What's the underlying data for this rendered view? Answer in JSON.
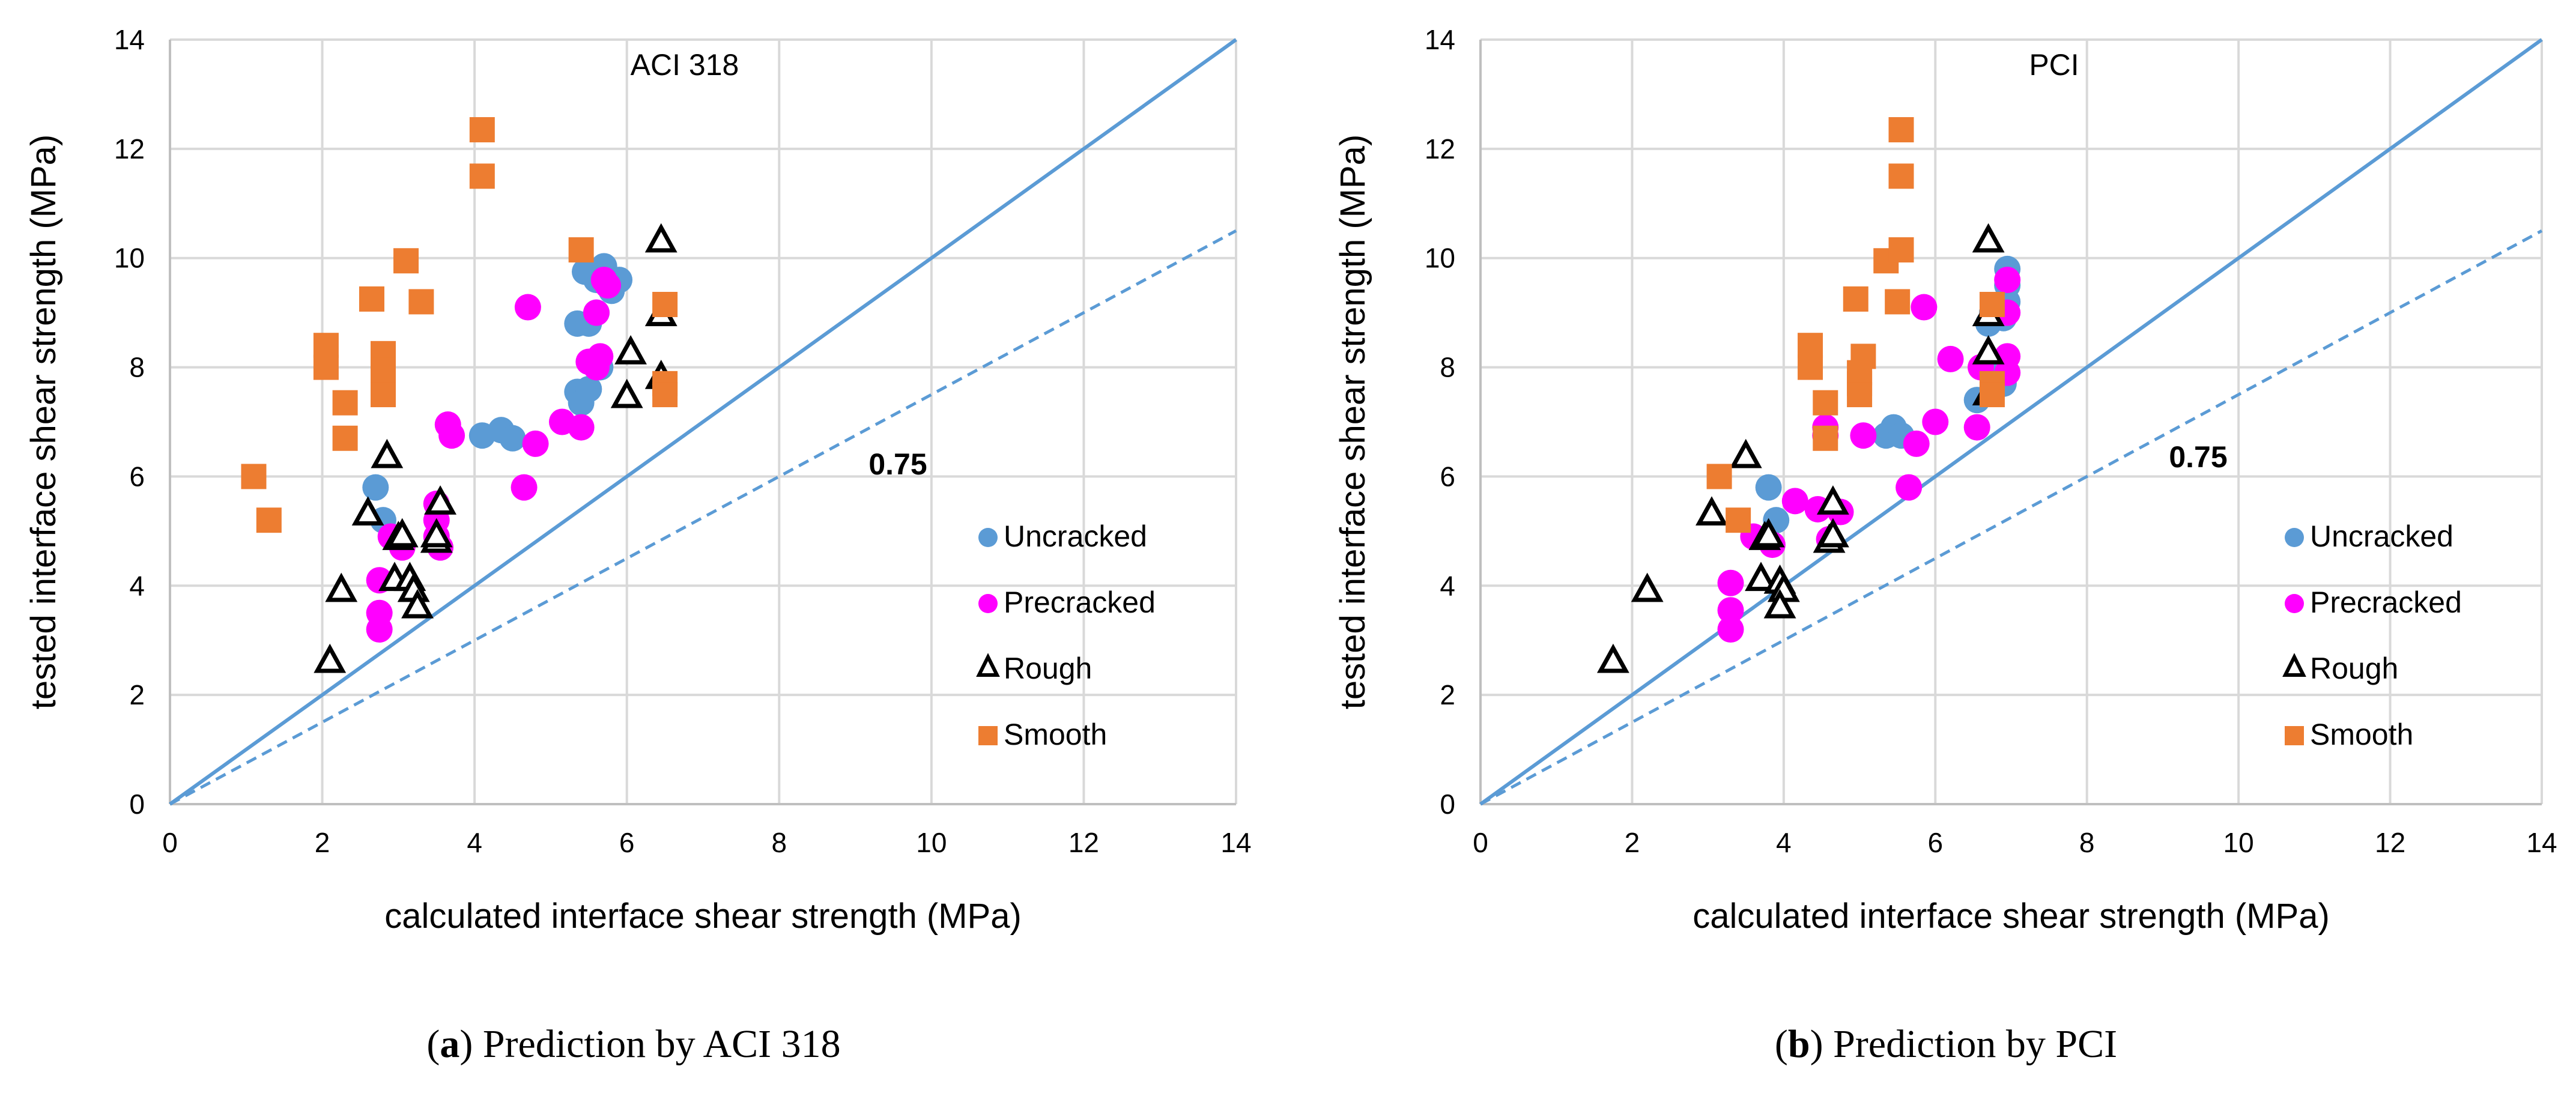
{
  "colors": {
    "uncracked": "#5B9BD5",
    "precracked": "#FF00FF",
    "rough": "#000000",
    "smooth": "#ED7D31",
    "grid": "#D9D9D9",
    "line": "#5B9BD5"
  },
  "captions": [
    {
      "letter": "a",
      "rest": ") Prediction by ACI 318",
      "open": "("
    },
    {
      "letter": "b",
      "rest": ") Prediction by PCI",
      "open": "("
    }
  ],
  "chart_data": [
    {
      "type": "scatter",
      "annotation": "ACI 318",
      "ratio_label": "0.75",
      "xlabel": "calculated interface shear strength (MPa)",
      "ylabel": "tested interface shear strength (MPa)",
      "xlim": [
        0,
        14
      ],
      "ylim": [
        0,
        14
      ],
      "xticks": [
        "0",
        "2",
        "4",
        "6",
        "8",
        "10",
        "12",
        "14"
      ],
      "yticks": [
        "0",
        "2",
        "4",
        "6",
        "8",
        "10",
        "12",
        "14"
      ],
      "grid": true,
      "legend": "right",
      "lines": [
        {
          "name": "1:1",
          "slope": 1,
          "style": "solid"
        },
        {
          "name": "0.75",
          "slope": 0.75,
          "style": "dashed"
        }
      ],
      "series": [
        {
          "name": "Uncracked",
          "marker": "circle",
          "points": [
            [
              2.7,
              5.8
            ],
            [
              2.8,
              5.2
            ],
            [
              4.1,
              6.75
            ],
            [
              4.35,
              6.85
            ],
            [
              4.5,
              6.7
            ],
            [
              5.35,
              7.55
            ],
            [
              5.4,
              7.35
            ],
            [
              5.5,
              7.6
            ],
            [
              5.35,
              8.8
            ],
            [
              5.5,
              8.8
            ],
            [
              5.6,
              9.0
            ],
            [
              5.6,
              9.6
            ],
            [
              5.7,
              9.85
            ],
            [
              5.8,
              9.4
            ],
            [
              5.9,
              9.6
            ],
            [
              5.45,
              9.75
            ],
            [
              5.65,
              8.0
            ]
          ]
        },
        {
          "name": "Precracked",
          "marker": "circle",
          "points": [
            [
              2.75,
              4.1
            ],
            [
              2.75,
              3.5
            ],
            [
              2.75,
              3.2
            ],
            [
              2.9,
              4.9
            ],
            [
              3.05,
              4.7
            ],
            [
              3.5,
              5.5
            ],
            [
              3.5,
              5.2
            ],
            [
              3.5,
              4.9
            ],
            [
              3.55,
              4.7
            ],
            [
              3.65,
              6.95
            ],
            [
              3.7,
              6.75
            ],
            [
              4.65,
              5.8
            ],
            [
              4.7,
              9.1
            ],
            [
              4.8,
              6.6
            ],
            [
              5.15,
              7.0
            ],
            [
              5.4,
              6.9
            ],
            [
              5.5,
              8.1
            ],
            [
              5.6,
              8.0
            ],
            [
              5.65,
              8.2
            ],
            [
              5.6,
              9.0
            ],
            [
              5.7,
              9.6
            ],
            [
              5.75,
              9.5
            ]
          ]
        },
        {
          "name": "Rough",
          "marker": "triangle",
          "points": [
            [
              2.1,
              2.6
            ],
            [
              2.25,
              3.9
            ],
            [
              2.6,
              5.3
            ],
            [
              2.85,
              6.35
            ],
            [
              2.95,
              4.1
            ],
            [
              3.0,
              4.85
            ],
            [
              3.05,
              4.9
            ],
            [
              3.15,
              4.1
            ],
            [
              3.2,
              3.9
            ],
            [
              3.25,
              3.6
            ],
            [
              3.5,
              4.8
            ],
            [
              3.5,
              4.9
            ],
            [
              3.55,
              5.5
            ],
            [
              6.0,
              7.45
            ],
            [
              6.05,
              8.25
            ],
            [
              6.45,
              10.3
            ],
            [
              6.45,
              8.95
            ],
            [
              6.45,
              7.8
            ]
          ]
        },
        {
          "name": "Smooth",
          "marker": "square",
          "points": [
            [
              1.1,
              6.0
            ],
            [
              1.3,
              5.2
            ],
            [
              2.05,
              8.4
            ],
            [
              2.05,
              8.0
            ],
            [
              2.3,
              7.35
            ],
            [
              2.3,
              6.7
            ],
            [
              2.65,
              9.25
            ],
            [
              2.8,
              8.25
            ],
            [
              2.8,
              7.95
            ],
            [
              2.8,
              7.7
            ],
            [
              2.8,
              7.5
            ],
            [
              3.1,
              9.95
            ],
            [
              3.3,
              9.2
            ],
            [
              4.1,
              12.35
            ],
            [
              4.1,
              11.5
            ],
            [
              5.4,
              10.15
            ],
            [
              6.5,
              9.15
            ],
            [
              6.5,
              7.7
            ],
            [
              6.5,
              7.5
            ]
          ]
        }
      ]
    },
    {
      "type": "scatter",
      "annotation": "PCI",
      "ratio_label": "0.75",
      "xlabel": "calculated interface shear strength (MPa)",
      "ylabel": "tested interface shear strength (MPa)",
      "xlim": [
        0,
        14
      ],
      "ylim": [
        0,
        14
      ],
      "xticks": [
        "0",
        "2",
        "4",
        "6",
        "8",
        "10",
        "12",
        "14"
      ],
      "yticks": [
        "0",
        "2",
        "4",
        "6",
        "8",
        "10",
        "12",
        "14"
      ],
      "grid": true,
      "legend": "right",
      "lines": [
        {
          "name": "1:1",
          "slope": 1,
          "style": "solid"
        },
        {
          "name": "0.75",
          "slope": 0.75,
          "style": "dashed"
        }
      ],
      "series": [
        {
          "name": "Uncracked",
          "marker": "circle",
          "points": [
            [
              3.8,
              5.8
            ],
            [
              3.9,
              5.2
            ],
            [
              5.35,
              6.75
            ],
            [
              5.45,
              6.9
            ],
            [
              5.55,
              6.75
            ],
            [
              6.55,
              7.4
            ],
            [
              6.7,
              8.8
            ],
            [
              6.75,
              8.9
            ],
            [
              6.8,
              8.0
            ],
            [
              6.9,
              7.7
            ],
            [
              6.95,
              9.8
            ],
            [
              6.95,
              9.5
            ],
            [
              6.95,
              9.2
            ],
            [
              6.9,
              8.9
            ],
            [
              6.75,
              9.0
            ]
          ]
        },
        {
          "name": "Precracked",
          "marker": "circle",
          "points": [
            [
              3.3,
              4.05
            ],
            [
              3.3,
              3.55
            ],
            [
              3.3,
              3.2
            ],
            [
              3.6,
              4.9
            ],
            [
              3.85,
              4.75
            ],
            [
              4.15,
              5.55
            ],
            [
              4.45,
              5.4
            ],
            [
              4.6,
              4.85
            ],
            [
              4.55,
              6.9
            ],
            [
              4.55,
              6.75
            ],
            [
              4.75,
              5.35
            ],
            [
              5.05,
              6.75
            ],
            [
              5.65,
              5.8
            ],
            [
              5.75,
              6.6
            ],
            [
              5.85,
              9.1
            ],
            [
              6.0,
              7.0
            ],
            [
              6.2,
              8.15
            ],
            [
              6.55,
              6.9
            ],
            [
              6.6,
              8.0
            ],
            [
              6.95,
              8.2
            ],
            [
              6.95,
              7.9
            ],
            [
              6.95,
              9.0
            ],
            [
              6.95,
              9.6
            ]
          ]
        },
        {
          "name": "Rough",
          "marker": "triangle",
          "points": [
            [
              1.75,
              2.6
            ],
            [
              2.2,
              3.9
            ],
            [
              3.05,
              5.3
            ],
            [
              3.5,
              6.35
            ],
            [
              3.7,
              4.1
            ],
            [
              3.75,
              4.85
            ],
            [
              3.8,
              4.9
            ],
            [
              3.95,
              4.05
            ],
            [
              4.0,
              3.9
            ],
            [
              3.95,
              3.6
            ],
            [
              4.6,
              4.8
            ],
            [
              4.65,
              4.9
            ],
            [
              4.65,
              5.5
            ],
            [
              6.7,
              10.3
            ],
            [
              6.7,
              8.95
            ],
            [
              6.7,
              8.25
            ],
            [
              6.7,
              7.5
            ]
          ]
        },
        {
          "name": "Smooth",
          "marker": "square",
          "points": [
            [
              3.15,
              6.0
            ],
            [
              3.4,
              5.2
            ],
            [
              4.35,
              8.4
            ],
            [
              4.35,
              8.0
            ],
            [
              4.55,
              7.35
            ],
            [
              4.55,
              6.7
            ],
            [
              4.95,
              9.25
            ],
            [
              5.05,
              8.2
            ],
            [
              5.0,
              7.9
            ],
            [
              5.0,
              7.7
            ],
            [
              5.0,
              7.5
            ],
            [
              5.35,
              9.95
            ],
            [
              5.5,
              9.2
            ],
            [
              5.55,
              12.35
            ],
            [
              5.55,
              11.5
            ],
            [
              5.55,
              10.15
            ],
            [
              6.75,
              9.15
            ],
            [
              6.75,
              7.7
            ],
            [
              6.75,
              7.5
            ]
          ]
        }
      ]
    }
  ]
}
